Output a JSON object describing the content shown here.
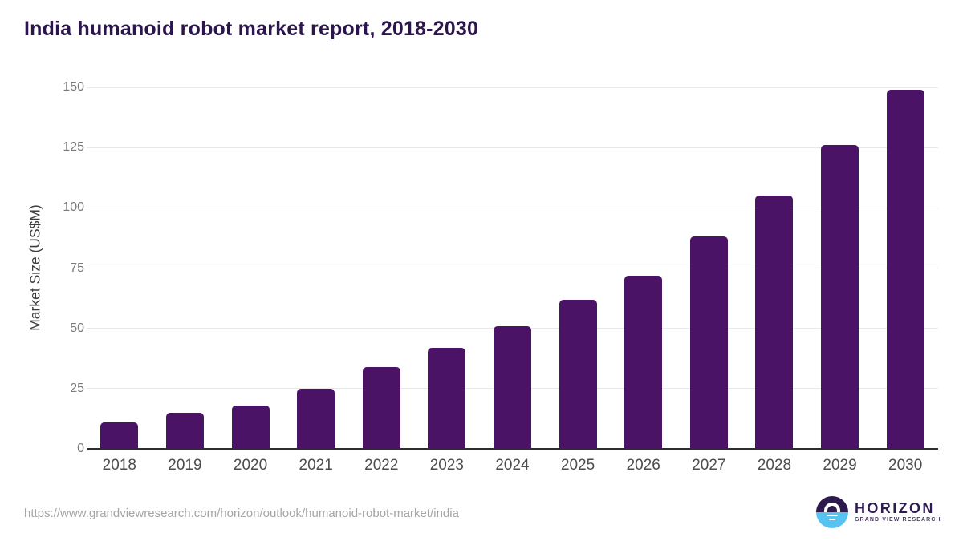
{
  "title": "India humanoid robot market report, 2018-2030",
  "source_url": "https://www.grandviewresearch.com/horizon/outlook/humanoid-robot-market/india",
  "logo": {
    "name": "HORIZON",
    "subtitle": "GRAND VIEW RESEARCH"
  },
  "colors": {
    "bar": "#4a1365",
    "title": "#2c154d",
    "gridline": "#e8e8e8",
    "axis_line": "#2e2e2e",
    "y_tick_label": "#7b7b7b",
    "x_tick_label": "#4c4c4c",
    "url_text": "#a5a5a5",
    "logo_dark": "#2d1b4e",
    "logo_blue": "#56c3f0"
  },
  "chart_data": {
    "type": "bar",
    "title": "India humanoid robot market report, 2018-2030",
    "categories": [
      "2018",
      "2019",
      "2020",
      "2021",
      "2022",
      "2023",
      "2024",
      "2025",
      "2026",
      "2027",
      "2028",
      "2029",
      "2030"
    ],
    "values": [
      11,
      15,
      18,
      25,
      34,
      42,
      51,
      62,
      72,
      88,
      105,
      126,
      149
    ],
    "xlabel": "",
    "ylabel": "Market Size (US$M)",
    "ylim": [
      0,
      150
    ],
    "yticks": [
      0,
      25,
      50,
      75,
      100,
      125,
      150
    ],
    "grid": "horizontal",
    "legend": "none",
    "bar_color": "#4a1365"
  }
}
